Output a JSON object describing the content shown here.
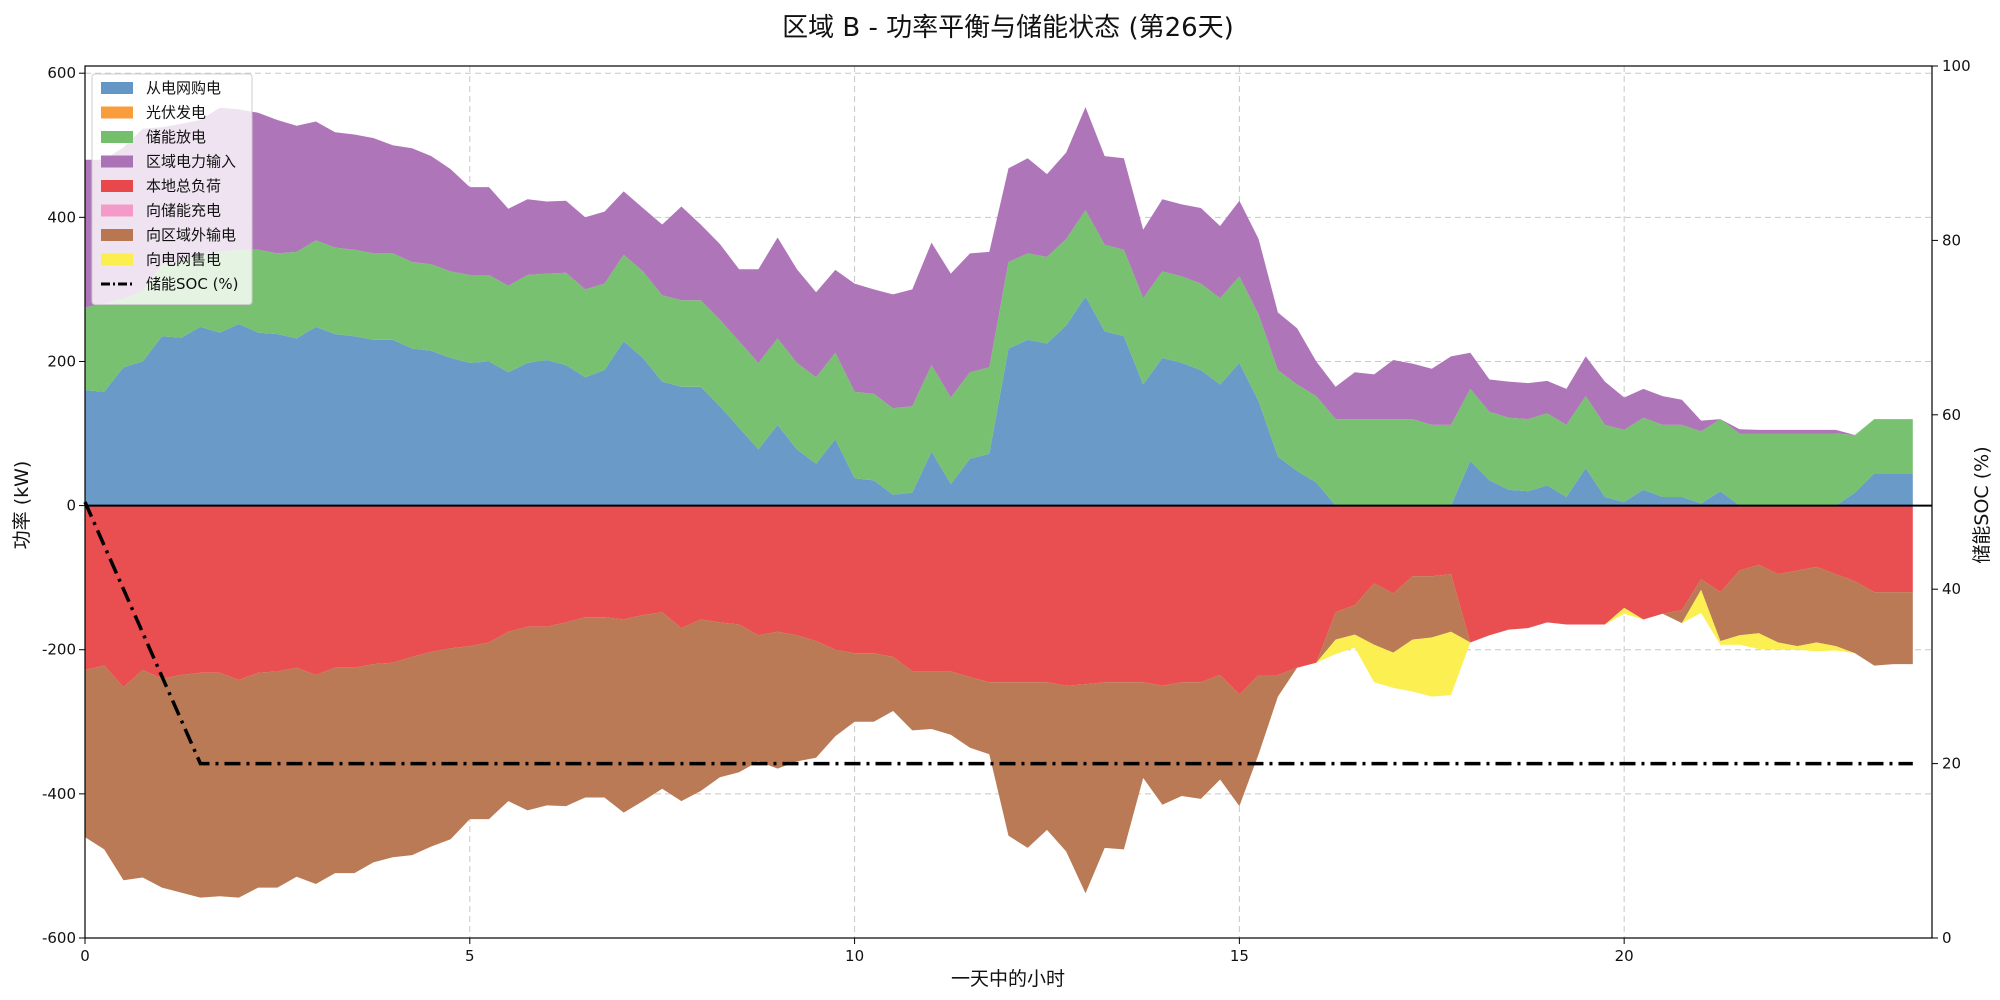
{
  "chart_data": {
    "type": "area",
    "title": "区域 B - 功率平衡与储能状态 (第26天)",
    "xlabel": "一天中的小时",
    "ylabel": "功率 (kW)",
    "y2label": "储能SOC (%)",
    "xlim": [
      0,
      24
    ],
    "ylim": [
      -600,
      610
    ],
    "y2lim": [
      0,
      100
    ],
    "xticks": [
      0,
      5,
      10,
      15,
      20
    ],
    "yticks": [
      -600,
      -400,
      -200,
      0,
      200,
      400,
      600
    ],
    "y2ticks": [
      0,
      20,
      40,
      60,
      80,
      100
    ],
    "grid": true,
    "legend_position": "top-left",
    "x": [
      0,
      0.25,
      0.5,
      0.75,
      1,
      1.25,
      1.5,
      1.75,
      2,
      2.25,
      2.5,
      2.75,
      3,
      3.25,
      3.5,
      3.75,
      4,
      4.25,
      4.5,
      4.75,
      5,
      5.25,
      5.5,
      5.75,
      6,
      6.25,
      6.5,
      6.75,
      7,
      7.25,
      7.5,
      7.75,
      8,
      8.25,
      8.5,
      8.75,
      9,
      9.25,
      9.5,
      9.75,
      10,
      10.25,
      10.5,
      10.75,
      11,
      11.25,
      11.5,
      11.75,
      12,
      12.25,
      12.5,
      12.75,
      13,
      13.25,
      13.5,
      13.75,
      14,
      14.25,
      14.5,
      14.75,
      15,
      15.25,
      15.5,
      15.75,
      16,
      16.25,
      16.5,
      16.75,
      17,
      17.25,
      17.5,
      17.75,
      18,
      18.25,
      18.5,
      18.75,
      19,
      19.25,
      19.5,
      19.75,
      20,
      20.25,
      20.5,
      20.75,
      21,
      21.25,
      21.5,
      21.75,
      22,
      22.25,
      22.5,
      22.75,
      23,
      23.25,
      23.5,
      23.75
    ],
    "series": [
      {
        "name": "从电网购电",
        "color": "#6497c6",
        "stack": "supply",
        "values": [
          160,
          158,
          192,
          200,
          235,
          233,
          248,
          240,
          252,
          240,
          238,
          232,
          248,
          238,
          235,
          230,
          230,
          218,
          215,
          205,
          198,
          200,
          185,
          198,
          202,
          195,
          178,
          188,
          228,
          205,
          172,
          165,
          165,
          138,
          108,
          78,
          112,
          78,
          58,
          92,
          38,
          35,
          15,
          18,
          75,
          30,
          65,
          72,
          218,
          230,
          225,
          250,
          290,
          242,
          235,
          168,
          205,
          198,
          188,
          168,
          198,
          145,
          68,
          48,
          32,
          0,
          0,
          0,
          0,
          0,
          0,
          0,
          62,
          35,
          22,
          20,
          28,
          12,
          52,
          12,
          5,
          22,
          12,
          12,
          3,
          20,
          0,
          0,
          0,
          0,
          0,
          0,
          18,
          45,
          45,
          45
        ]
      },
      {
        "name": "光伏发电",
        "color": "#f89c3c",
        "stack": "supply",
        "values": [
          0,
          0,
          0,
          0,
          0,
          0,
          0,
          0,
          0,
          0,
          0,
          0,
          0,
          0,
          0,
          0,
          0,
          0,
          0,
          0,
          0,
          0,
          0,
          0,
          0,
          0,
          0,
          0,
          0,
          0,
          0,
          0,
          0,
          0,
          0,
          0,
          0,
          0,
          0,
          0,
          0,
          0,
          0,
          0,
          0,
          0,
          0,
          0,
          0,
          0,
          0,
          0,
          0,
          0,
          0,
          0,
          0,
          0,
          0,
          0,
          0,
          0,
          0,
          0,
          0,
          0,
          0,
          0,
          0,
          0,
          0,
          0,
          0,
          0,
          0,
          0,
          0,
          0,
          0,
          0,
          0,
          0,
          0,
          0,
          0,
          0,
          0,
          0,
          0,
          0,
          0,
          0,
          0,
          0,
          0,
          0
        ]
      },
      {
        "name": "储能放电",
        "color": "#74bf6c",
        "stack": "supply",
        "values": [
          115,
          122,
          95,
          98,
          100,
          105,
          102,
          112,
          103,
          115,
          112,
          120,
          120,
          120,
          120,
          120,
          120,
          120,
          120,
          120,
          122,
          120,
          120,
          122,
          120,
          128,
          122,
          120,
          120,
          120,
          120,
          120,
          120,
          120,
          120,
          120,
          120,
          120,
          120,
          120,
          120,
          120,
          120,
          120,
          120,
          120,
          120,
          120,
          120,
          120,
          120,
          120,
          120,
          120,
          120,
          120,
          120,
          120,
          120,
          120,
          120,
          120,
          120,
          120,
          120,
          120,
          120,
          120,
          120,
          120,
          112,
          112,
          100,
          95,
          100,
          100,
          100,
          100,
          100,
          100,
          100,
          100,
          100,
          100,
          100,
          100,
          100,
          100,
          100,
          100,
          100,
          100,
          80,
          75,
          75,
          75
        ]
      },
      {
        "name": "区域电力输入",
        "color": "#ab72b6",
        "stack": "supply",
        "values": [
          205,
          200,
          210,
          225,
          190,
          192,
          185,
          200,
          195,
          190,
          185,
          175,
          165,
          160,
          160,
          160,
          150,
          158,
          150,
          142,
          122,
          122,
          107,
          105,
          100,
          100,
          100,
          100,
          88,
          88,
          98,
          130,
          105,
          105,
          100,
          130,
          140,
          130,
          118,
          115,
          150,
          145,
          158,
          162,
          170,
          172,
          165,
          160,
          130,
          132,
          115,
          120,
          143,
          123,
          127,
          95,
          100,
          100,
          105,
          100,
          105,
          105,
          80,
          78,
          48,
          45,
          65,
          62,
          82,
          77,
          78,
          95,
          50,
          45,
          50,
          50,
          45,
          50,
          55,
          60,
          45,
          40,
          40,
          35,
          15,
          0,
          6,
          5,
          5,
          5,
          5,
          5,
          0,
          0,
          0,
          0
        ]
      },
      {
        "name": "本地总负荷",
        "color": "#e8484a",
        "stack": "demand",
        "values": [
          -228,
          -222,
          -252,
          -228,
          -240,
          -235,
          -232,
          -232,
          -242,
          -232,
          -230,
          -225,
          -235,
          -225,
          -225,
          -220,
          -218,
          -210,
          -203,
          -198,
          -195,
          -190,
          -175,
          -168,
          -168,
          -162,
          -155,
          -155,
          -158,
          -152,
          -148,
          -170,
          -158,
          -162,
          -165,
          -180,
          -175,
          -180,
          -188,
          -200,
          -205,
          -205,
          -210,
          -230,
          -230,
          -230,
          -238,
          -245,
          -245,
          -245,
          -245,
          -250,
          -248,
          -245,
          -245,
          -245,
          -250,
          -245,
          -245,
          -235,
          -262,
          -235,
          -235,
          -225,
          -218,
          -148,
          -138,
          -108,
          -122,
          -98,
          -98,
          -95,
          -190,
          -180,
          -172,
          -170,
          -162,
          -165,
          -165,
          -165,
          -142,
          -158,
          -150,
          -145,
          -102,
          -120,
          -90,
          -82,
          -95,
          -90,
          -85,
          -95,
          -105,
          -120,
          -120,
          -120
        ]
      },
      {
        "name": "向储能充电",
        "color": "#f39ac8",
        "stack": "demand",
        "values": [
          0,
          0,
          0,
          0,
          0,
          0,
          0,
          0,
          0,
          0,
          0,
          0,
          0,
          0,
          0,
          0,
          0,
          0,
          0,
          0,
          0,
          0,
          0,
          0,
          0,
          0,
          0,
          0,
          0,
          0,
          0,
          0,
          0,
          0,
          0,
          0,
          0,
          0,
          0,
          0,
          0,
          0,
          0,
          0,
          0,
          0,
          0,
          0,
          0,
          0,
          0,
          0,
          0,
          0,
          0,
          0,
          0,
          0,
          0,
          0,
          0,
          0,
          0,
          0,
          0,
          0,
          0,
          0,
          0,
          0,
          0,
          0,
          0,
          0,
          0,
          0,
          0,
          0,
          0,
          0,
          0,
          0,
          0,
          0,
          0,
          0,
          0,
          0,
          0,
          0,
          0,
          0,
          0,
          0,
          0,
          0
        ]
      },
      {
        "name": "向区域外输电",
        "color": "#b87651",
        "stack": "demand",
        "values": [
          -232,
          -255,
          -268,
          -288,
          -290,
          -302,
          -312,
          -310,
          -302,
          -298,
          -300,
          -290,
          -290,
          -285,
          -285,
          -275,
          -270,
          -275,
          -270,
          -265,
          -240,
          -245,
          -235,
          -255,
          -248,
          -255,
          -250,
          -250,
          -268,
          -258,
          -245,
          -240,
          -238,
          -215,
          -205,
          -175,
          -190,
          -175,
          -162,
          -120,
          -95,
          -95,
          -75,
          -82,
          -80,
          -88,
          -98,
          -100,
          -213,
          -230,
          -205,
          -230,
          -290,
          -230,
          -232,
          -133,
          -165,
          -158,
          -162,
          -145,
          -155,
          -110,
          -30,
          0,
          0,
          -38,
          -41,
          -85,
          -82,
          -88,
          -85,
          -80,
          0,
          0,
          0,
          0,
          0,
          0,
          0,
          0,
          0,
          0,
          0,
          -18,
          -15,
          -68,
          -90,
          -95,
          -95,
          -105,
          -105,
          -100,
          -100,
          -102,
          -100,
          -100
        ]
      },
      {
        "name": "向电网售电",
        "color": "#fcee4c",
        "stack": "demand",
        "values": [
          0,
          0,
          0,
          0,
          0,
          0,
          0,
          0,
          0,
          0,
          0,
          0,
          0,
          0,
          0,
          0,
          0,
          0,
          0,
          0,
          0,
          0,
          0,
          0,
          0,
          0,
          0,
          0,
          0,
          0,
          0,
          0,
          0,
          0,
          0,
          0,
          0,
          0,
          0,
          0,
          0,
          0,
          0,
          0,
          0,
          0,
          0,
          0,
          0,
          0,
          0,
          0,
          0,
          0,
          0,
          0,
          0,
          0,
          0,
          0,
          0,
          0,
          0,
          0,
          0,
          -20,
          -18,
          -52,
          -49,
          -72,
          -82,
          -88,
          0,
          0,
          0,
          0,
          0,
          0,
          0,
          0,
          -8,
          0,
          0,
          0,
          -32,
          -5,
          -13,
          -22,
          -10,
          -5,
          -12,
          -6,
          0,
          0,
          0,
          0
        ]
      }
    ],
    "soc": {
      "name": "储能SOC (%)",
      "color": "#000000",
      "axis": "right",
      "x": [
        0,
        1.5,
        23.75
      ],
      "values": [
        50,
        20,
        20
      ]
    }
  }
}
